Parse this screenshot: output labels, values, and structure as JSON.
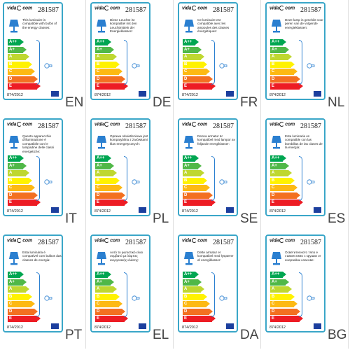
{
  "model": "281587",
  "regulation": "874/2012",
  "brand": {
    "text_a": "vida",
    "text_b": "com"
  },
  "classes": [
    "A++",
    "A+",
    "A",
    "B",
    "C",
    "D",
    "E"
  ],
  "class_colors": [
    "#00a651",
    "#50b848",
    "#bfd730",
    "#fff200",
    "#fdb913",
    "#f37021",
    "#ed1c24"
  ],
  "labels": [
    {
      "lang": "EN",
      "desc": "This luminaire is compatible with bulbs of the energy classes:"
    },
    {
      "lang": "DE",
      "desc": "Diese Leuchte ist kompatibel mit den Leuchtmitteln der Energieklassen:"
    },
    {
      "lang": "FR",
      "desc": "Ce luminaire est compatible avec les ampoules des classes énergétiques:"
    },
    {
      "lang": "NL",
      "desc": "Deze lamp is geschikt voor peren van de volgende energieklassen:"
    },
    {
      "lang": "IT",
      "desc": "Questo apparecchio d'illuminazione è compatibile con le lampadine delle classi energetiche:"
    },
    {
      "lang": "PL",
      "desc": "Oprawa oświetleniowa jest kompatybilna z żarówkami klas energetycznych:"
    },
    {
      "lang": "SE",
      "desc": "Denna armatur är kompatibel med lampor av följande energiklasser:"
    },
    {
      "lang": "ES",
      "desc": "Esta luminaria es compatible con las bombillas de las clases de la energía:"
    },
    {
      "lang": "PT",
      "desc": "Esta luminária é compatível com bulbos das classes de energia:"
    },
    {
      "lang": "EL",
      "desc": "Αυτό το φωτιστικό είναι συμβατό με λάμπες ενεργειακής κλάσης:"
    },
    {
      "lang": "DA",
      "desc": "Dette armatur er kompatibel med lyspærer af energiklasser:"
    },
    {
      "lang": "BG",
      "desc": "Осветителното тяло е съвместимо с крушки от енергийни класове:"
    }
  ]
}
